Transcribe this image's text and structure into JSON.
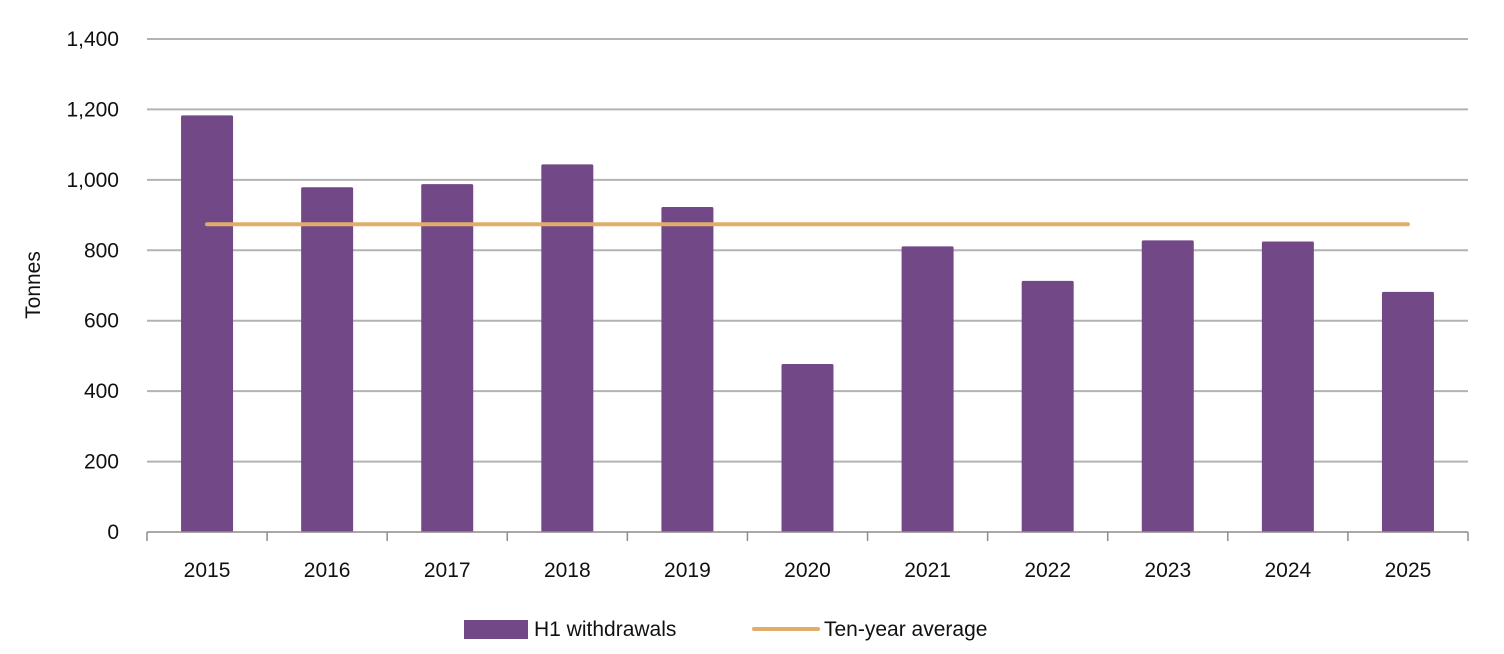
{
  "chart_data": {
    "type": "bar",
    "title": "",
    "xlabel": "",
    "ylabel": "Tonnes",
    "ylim": [
      0,
      1400
    ],
    "yticks": [
      0,
      200,
      400,
      600,
      800,
      1000,
      1200,
      1400
    ],
    "ytick_labels": [
      "0",
      "200",
      "400",
      "600",
      "800",
      "1,000",
      "1,200",
      "1,400"
    ],
    "categories": [
      "2015",
      "2016",
      "2017",
      "2018",
      "2019",
      "2020",
      "2021",
      "2022",
      "2023",
      "2024",
      "2025"
    ],
    "series": [
      {
        "name": "H1 withdrawals",
        "kind": "bar",
        "color": "#724887",
        "values": [
          1183,
          979,
          988,
          1044,
          923,
          477,
          811,
          713,
          828,
          825,
          682
        ]
      },
      {
        "name": "Ten-year average",
        "kind": "line",
        "color": "#e0ad6b",
        "values": [
          874,
          874,
          874,
          874,
          874,
          874,
          874,
          874,
          874,
          874,
          874
        ]
      }
    ],
    "grid": true,
    "legend": "bottom"
  }
}
